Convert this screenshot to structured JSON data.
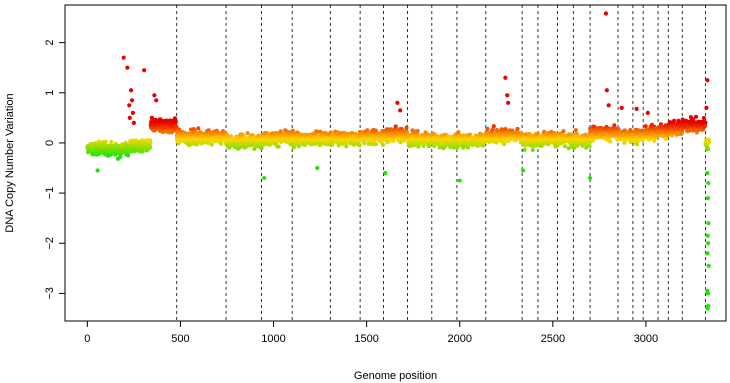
{
  "chart_data": {
    "type": "scatter",
    "title": "",
    "xlabel": "Genome position",
    "ylabel": "DNA Copy Number Variation",
    "xlim": [
      -120,
      3430
    ],
    "ylim": [
      -3.55,
      2.75
    ],
    "x_ticks": [
      0,
      500,
      1000,
      1500,
      2000,
      2500,
      3000
    ],
    "y_ticks": [
      -3,
      -2,
      -1,
      0,
      1,
      2
    ],
    "x_tick_labels": [
      "0",
      "500",
      "1000",
      "1500",
      "2000",
      "2500",
      "3000"
    ],
    "y_tick_labels": [
      "−3",
      "−2",
      "−1",
      "0",
      "1",
      "2"
    ],
    "grid": false,
    "legend": "none",
    "n_points": 3340,
    "colors": {
      "high": "#e60000",
      "mid": "#ffd700",
      "low": "#1ee600"
    },
    "segment_boundaries": [
      480,
      745,
      935,
      1100,
      1305,
      1465,
      1590,
      1720,
      1850,
      1985,
      2140,
      2335,
      2420,
      2525,
      2610,
      2700,
      2850,
      2930,
      2985,
      3065,
      3120,
      3195,
      3320
    ],
    "segment_levels": [
      {
        "from": 0,
        "to": 230,
        "level": -0.12
      },
      {
        "from": 230,
        "to": 340,
        "level": -0.05
      },
      {
        "from": 340,
        "to": 480,
        "level": 0.35
      },
      {
        "from": 480,
        "to": 745,
        "level": 0.12
      },
      {
        "from": 745,
        "to": 935,
        "level": 0.05
      },
      {
        "from": 935,
        "to": 1100,
        "level": 0.1
      },
      {
        "from": 1100,
        "to": 1305,
        "level": 0.08
      },
      {
        "from": 1305,
        "to": 1465,
        "level": 0.1
      },
      {
        "from": 1465,
        "to": 1590,
        "level": 0.12
      },
      {
        "from": 1590,
        "to": 1720,
        "level": 0.18
      },
      {
        "from": 1720,
        "to": 1850,
        "level": 0.08
      },
      {
        "from": 1850,
        "to": 1985,
        "level": 0.05
      },
      {
        "from": 1985,
        "to": 2140,
        "level": 0.05
      },
      {
        "from": 2140,
        "to": 2335,
        "level": 0.15
      },
      {
        "from": 2335,
        "to": 2420,
        "level": 0.05
      },
      {
        "from": 2420,
        "to": 2525,
        "level": 0.1
      },
      {
        "from": 2525,
        "to": 2610,
        "level": 0.05
      },
      {
        "from": 2610,
        "to": 2700,
        "level": 0.05
      },
      {
        "from": 2700,
        "to": 2850,
        "level": 0.2
      },
      {
        "from": 2850,
        "to": 2930,
        "level": 0.15
      },
      {
        "from": 2930,
        "to": 2985,
        "level": 0.15
      },
      {
        "from": 2985,
        "to": 3065,
        "level": 0.2
      },
      {
        "from": 3065,
        "to": 3120,
        "level": 0.25
      },
      {
        "from": 3120,
        "to": 3195,
        "level": 0.3
      },
      {
        "from": 3195,
        "to": 3320,
        "level": 0.35
      }
    ],
    "outliers": [
      {
        "x": 195,
        "y": 1.7
      },
      {
        "x": 215,
        "y": 1.5
      },
      {
        "x": 235,
        "y": 1.05
      },
      {
        "x": 240,
        "y": 0.85
      },
      {
        "x": 225,
        "y": 0.75
      },
      {
        "x": 245,
        "y": 0.6
      },
      {
        "x": 228,
        "y": 0.5
      },
      {
        "x": 250,
        "y": 0.4
      },
      {
        "x": 305,
        "y": 1.45
      },
      {
        "x": 360,
        "y": 0.95
      },
      {
        "x": 370,
        "y": 0.85
      },
      {
        "x": 55,
        "y": -0.55
      },
      {
        "x": 950,
        "y": -0.7
      },
      {
        "x": 1235,
        "y": -0.5
      },
      {
        "x": 1600,
        "y": -0.6
      },
      {
        "x": 1665,
        "y": 0.8
      },
      {
        "x": 1680,
        "y": 0.65
      },
      {
        "x": 2000,
        "y": -0.75
      },
      {
        "x": 2245,
        "y": 1.3
      },
      {
        "x": 2255,
        "y": 0.95
      },
      {
        "x": 2260,
        "y": 0.8
      },
      {
        "x": 2340,
        "y": -0.55
      },
      {
        "x": 2700,
        "y": -0.7
      },
      {
        "x": 2785,
        "y": 2.58
      },
      {
        "x": 2790,
        "y": 1.05
      },
      {
        "x": 2800,
        "y": 0.75
      },
      {
        "x": 2870,
        "y": 0.7
      },
      {
        "x": 2950,
        "y": 0.68
      },
      {
        "x": 3010,
        "y": 0.6
      },
      {
        "x": 3330,
        "y": 1.25
      },
      {
        "x": 3325,
        "y": 0.7
      },
      {
        "x": 3330,
        "y": -0.6
      },
      {
        "x": 3335,
        "y": -0.8
      },
      {
        "x": 3333,
        "y": -1.1
      },
      {
        "x": 3336,
        "y": -1.6
      },
      {
        "x": 3332,
        "y": -1.85
      },
      {
        "x": 3334,
        "y": -2.0
      },
      {
        "x": 3331,
        "y": -2.2
      },
      {
        "x": 3337,
        "y": -2.45
      },
      {
        "x": 3330,
        "y": -2.95
      },
      {
        "x": 3333,
        "y": -3.0
      },
      {
        "x": 3335,
        "y": -3.25
      },
      {
        "x": 3331,
        "y": -3.3
      }
    ]
  }
}
